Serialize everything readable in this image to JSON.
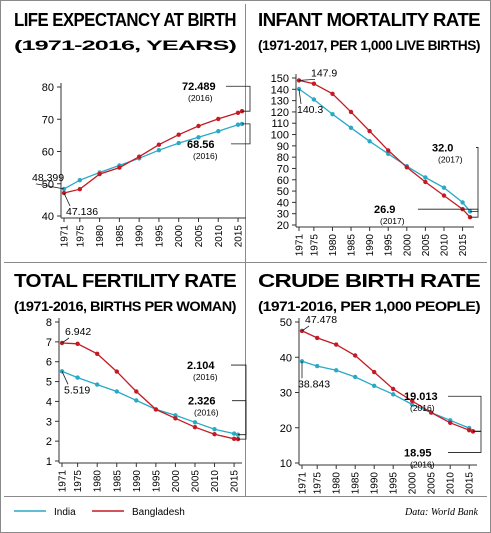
{
  "colors": {
    "India": "#29a9c6",
    "Bangladesh": "#c41a24",
    "axis": "#333333",
    "divider": "#8a8a8a",
    "callout": "#1a1a1a"
  },
  "legend": {
    "india": "India",
    "bangladesh": "Bangladesh"
  },
  "source": "Data: World Bank",
  "chart_data": [
    {
      "type": "line",
      "title": "LIFE EXPECTANCY AT BIRTH",
      "subtitle": "(1971-2016, YEARS)",
      "x": [
        1971,
        1975,
        1980,
        1985,
        1990,
        1995,
        2000,
        2005,
        2010,
        2015,
        2016
      ],
      "x_ticks": [
        "1971",
        "1975",
        "1980",
        "1985",
        "1990",
        "1995",
        "2000",
        "2005",
        "2010",
        "2015"
      ],
      "y_ticks": [
        "40",
        "50",
        "60",
        "70",
        "80"
      ],
      "ylim": [
        40,
        80
      ],
      "series": [
        {
          "name": "India",
          "values": [
            48.399,
            51.1,
            53.5,
            55.7,
            57.9,
            60.4,
            62.6,
            64.4,
            66.3,
            68.3,
            68.56
          ]
        },
        {
          "name": "Bangladesh",
          "values": [
            47.136,
            48.3,
            53.0,
            55.0,
            58.4,
            62.1,
            65.2,
            67.9,
            70.1,
            72.0,
            72.489
          ]
        }
      ],
      "annotations": [
        {
          "text": "48.399",
          "series": "India",
          "index": 0
        },
        {
          "text": "47.136",
          "series": "Bangladesh",
          "index": 0
        },
        {
          "text": "72.489",
          "year": "(2016)",
          "series": "Bangladesh",
          "index": 10
        },
        {
          "text": "68.56",
          "year": "(2016)",
          "series": "India",
          "index": 10
        }
      ]
    },
    {
      "type": "line",
      "title": "INFANT MORTALITY RATE",
      "subtitle": "(1971-2017, PER 1,000 LIVE BIRTHS)",
      "x": [
        1971,
        1975,
        1980,
        1985,
        1990,
        1995,
        2000,
        2005,
        2010,
        2015,
        2017
      ],
      "x_ticks": [
        "1971",
        "1975",
        "1980",
        "1985",
        "1990",
        "1995",
        "2000",
        "2005",
        "2010",
        "2015"
      ],
      "y_ticks": [
        "20",
        "30",
        "40",
        "50",
        "60",
        "70",
        "80",
        "90",
        "100",
        "110",
        "120",
        "130",
        "140",
        "150"
      ],
      "ylim": [
        20,
        150
      ],
      "series": [
        {
          "name": "India",
          "values": [
            140.3,
            131,
            118,
            106,
            94,
            83,
            72,
            62,
            53,
            40,
            32.0
          ]
        },
        {
          "name": "Bangladesh",
          "values": [
            147.9,
            145,
            136,
            120,
            103,
            86,
            71,
            58,
            46,
            34,
            26.9
          ]
        }
      ],
      "annotations": [
        {
          "text": "147.9",
          "series": "Bangladesh",
          "index": 0
        },
        {
          "text": "140.3",
          "series": "India",
          "index": 0
        },
        {
          "text": "32.0",
          "year": "(2017)",
          "series": "India",
          "index": 10
        },
        {
          "text": "26.9",
          "year": "(2017)",
          "series": "Bangladesh",
          "index": 10
        }
      ]
    },
    {
      "type": "line",
      "title": "TOTAL FERTILITY RATE",
      "subtitle": "(1971-2016, BIRTHS PER WOMAN)",
      "x": [
        1971,
        1975,
        1980,
        1985,
        1990,
        1995,
        2000,
        2005,
        2010,
        2015,
        2016
      ],
      "x_ticks": [
        "1971",
        "1975",
        "1980",
        "1985",
        "1990",
        "1995",
        "2000",
        "2005",
        "2010",
        "2015"
      ],
      "y_ticks": [
        "1",
        "2",
        "3",
        "4",
        "5",
        "6",
        "7",
        "8"
      ],
      "ylim": [
        1,
        8
      ],
      "series": [
        {
          "name": "India",
          "values": [
            5.519,
            5.2,
            4.85,
            4.5,
            4.05,
            3.6,
            3.3,
            2.95,
            2.6,
            2.38,
            2.326
          ]
        },
        {
          "name": "Bangladesh",
          "values": [
            6.942,
            6.9,
            6.4,
            5.5,
            4.5,
            3.6,
            3.15,
            2.7,
            2.35,
            2.12,
            2.104
          ]
        }
      ],
      "annotations": [
        {
          "text": "6.942",
          "series": "Bangladesh",
          "index": 0
        },
        {
          "text": "5.519",
          "series": "India",
          "index": 0
        },
        {
          "text": "2.104",
          "year": "(2016)",
          "series": "Bangladesh",
          "index": 10
        },
        {
          "text": "2.326",
          "year": "(2016)",
          "series": "India",
          "index": 10
        }
      ]
    },
    {
      "type": "line",
      "title": "CRUDE BIRTH RATE",
      "subtitle": "(1971-2016, PER 1,000 PEOPLE)",
      "x": [
        1971,
        1975,
        1980,
        1985,
        1990,
        1995,
        2000,
        2005,
        2010,
        2015,
        2016
      ],
      "x_ticks": [
        "1971",
        "1975",
        "1980",
        "1985",
        "1990",
        "1995",
        "2000",
        "2005",
        "2010",
        "2015"
      ],
      "y_ticks": [
        "10",
        "20",
        "30",
        "40",
        "50"
      ],
      "ylim": [
        10,
        50
      ],
      "series": [
        {
          "name": "India",
          "values": [
            38.843,
            37.5,
            36.3,
            34.4,
            31.9,
            29.5,
            26.6,
            24.3,
            22.1,
            19.9,
            19.013
          ]
        },
        {
          "name": "Bangladesh",
          "values": [
            47.478,
            45.5,
            43.6,
            40.5,
            35.8,
            31.0,
            27.6,
            24.3,
            21.4,
            19.3,
            18.95
          ]
        }
      ],
      "annotations": [
        {
          "text": "47.478",
          "series": "Bangladesh",
          "index": 0
        },
        {
          "text": "38.843",
          "series": "India",
          "index": 0
        },
        {
          "text": "19.013",
          "year": "(2016)",
          "series": "India",
          "index": 10
        },
        {
          "text": "18.95",
          "year": "(2016)",
          "series": "Bangladesh",
          "index": 10
        }
      ]
    }
  ]
}
